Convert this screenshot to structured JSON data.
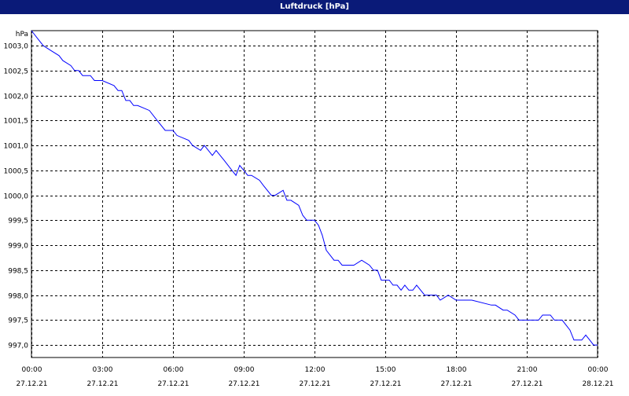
{
  "window": {
    "title": "Luftdruck [hPa]"
  },
  "chart_data": {
    "type": "line",
    "title": "Luftdruck [hPa]",
    "ylabel": "hPa",
    "ylim": [
      996.75,
      1003.3
    ],
    "x_range_hours": [
      0,
      24
    ],
    "grid": true,
    "colors": {
      "series": "#0000ff",
      "grid": "#000000",
      "titlebar": "#0a1a78"
    },
    "yticks": [
      {
        "value": 1003.0,
        "label": "1003,0"
      },
      {
        "value": 1002.5,
        "label": "1002,5"
      },
      {
        "value": 1002.0,
        "label": "1002,0"
      },
      {
        "value": 1001.5,
        "label": "1001,5"
      },
      {
        "value": 1001.0,
        "label": "1001,0"
      },
      {
        "value": 1000.5,
        "label": "1000,5"
      },
      {
        "value": 1000.0,
        "label": "1000,0"
      },
      {
        "value": 999.5,
        "label": "999,5"
      },
      {
        "value": 999.0,
        "label": "999,0"
      },
      {
        "value": 998.5,
        "label": "998,5"
      },
      {
        "value": 998.0,
        "label": "998,0"
      },
      {
        "value": 997.5,
        "label": "997,5"
      },
      {
        "value": 997.0,
        "label": "997,0"
      }
    ],
    "xticks": [
      {
        "value": 0,
        "time": "00:00",
        "date": "27.12.21"
      },
      {
        "value": 3,
        "time": "03:00",
        "date": "27.12.21"
      },
      {
        "value": 6,
        "time": "06:00",
        "date": "27.12.21"
      },
      {
        "value": 9,
        "time": "09:00",
        "date": "27.12.21"
      },
      {
        "value": 12,
        "time": "12:00",
        "date": "27.12.21"
      },
      {
        "value": 15,
        "time": "15:00",
        "date": "27.12.21"
      },
      {
        "value": 18,
        "time": "18:00",
        "date": "27.12.21"
      },
      {
        "value": 21,
        "time": "21:00",
        "date": "27.12.21"
      },
      {
        "value": 24,
        "time": "00:00",
        "date": "28.12.21"
      }
    ],
    "series": [
      {
        "x": [
          0,
          0.33,
          0.5,
          0.83,
          1.17,
          1.33,
          1.67,
          1.83,
          2.0,
          2.17,
          2.5,
          2.67,
          3.0,
          3.5,
          3.67,
          3.83,
          4.0,
          4.17,
          4.33,
          4.5,
          5.0,
          5.33,
          5.67,
          5.83,
          6.0,
          6.17,
          6.67,
          6.83,
          7.17,
          7.33,
          7.5,
          7.67,
          7.83,
          8.0,
          8.17,
          8.5,
          8.67,
          8.83,
          9.0,
          9.17,
          9.33,
          9.67,
          9.83,
          10.17,
          10.33,
          10.67,
          10.83,
          11.0,
          11.33,
          11.5,
          11.67,
          12.0,
          12.17,
          12.33,
          12.5,
          12.83,
          13.0,
          13.17,
          13.33,
          13.67,
          14.0,
          14.33,
          14.5,
          14.67,
          14.83,
          15.17,
          15.33,
          15.5,
          15.67,
          15.83,
          16.0,
          16.17,
          16.33,
          16.5,
          16.67,
          17.0,
          17.17,
          17.33,
          17.67,
          18.0,
          18.17,
          18.33,
          18.5,
          18.67,
          19.5,
          19.67,
          20.0,
          20.17,
          20.5,
          20.67,
          21.0,
          21.17,
          21.5,
          21.67,
          22.0,
          22.17,
          22.5,
          22.83,
          23.0,
          23.17,
          23.33,
          23.5,
          23.67,
          23.83,
          24.0
        ],
        "y": [
          1003.3,
          1003.1,
          1003.0,
          1002.9,
          1002.8,
          1002.7,
          1002.6,
          1002.5,
          1002.5,
          1002.4,
          1002.4,
          1002.3,
          1002.3,
          1002.2,
          1002.1,
          1002.1,
          1001.9,
          1001.9,
          1001.8,
          1001.8,
          1001.7,
          1001.5,
          1001.3,
          1001.3,
          1001.3,
          1001.2,
          1001.1,
          1001.0,
          1000.9,
          1001.0,
          1000.9,
          1000.8,
          1000.9,
          1000.8,
          1000.7,
          1000.5,
          1000.4,
          1000.6,
          1000.5,
          1000.4,
          1000.4,
          1000.3,
          1000.2,
          1000.0,
          1000.0,
          1000.1,
          999.9,
          999.9,
          999.8,
          999.6,
          999.5,
          999.5,
          999.4,
          999.2,
          998.9,
          998.7,
          998.7,
          998.6,
          998.6,
          998.6,
          998.7,
          998.6,
          998.5,
          998.5,
          998.3,
          998.3,
          998.2,
          998.2,
          998.1,
          998.2,
          998.1,
          998.1,
          998.2,
          998.1,
          998.0,
          998.0,
          998.0,
          997.9,
          998.0,
          997.9,
          997.9,
          997.9,
          997.9,
          997.9,
          997.8,
          997.8,
          997.7,
          997.7,
          997.6,
          997.5,
          997.5,
          997.5,
          997.5,
          997.6,
          997.6,
          997.5,
          997.5,
          997.3,
          997.1,
          997.1,
          997.1,
          997.2,
          997.1,
          997.0,
          997.0
        ]
      }
    ]
  }
}
